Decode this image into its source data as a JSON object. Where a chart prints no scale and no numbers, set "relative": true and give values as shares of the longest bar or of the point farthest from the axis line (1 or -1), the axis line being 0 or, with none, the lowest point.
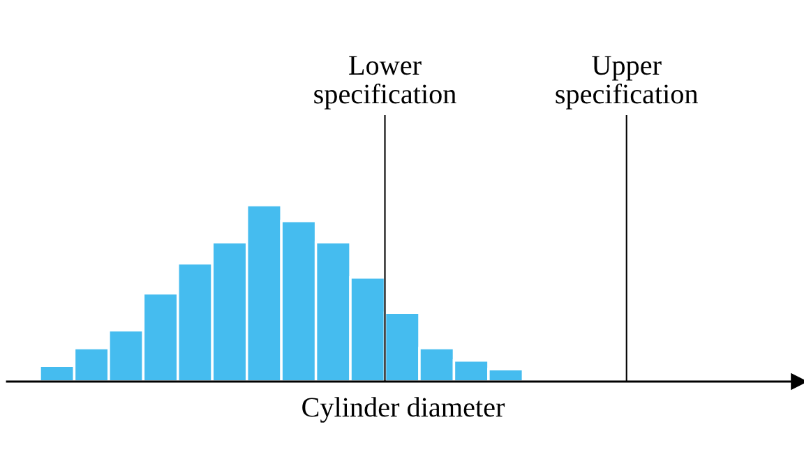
{
  "chart_data": {
    "type": "bar",
    "xlabel": "Cylinder diameter",
    "relative": true,
    "tick_labels": false,
    "categories": [
      null,
      null,
      null,
      null,
      null,
      null,
      null,
      null,
      null,
      null,
      null,
      null,
      null,
      null
    ],
    "values": [
      0.09,
      0.19,
      0.29,
      0.5,
      0.67,
      0.79,
      1,
      0.91,
      0.79,
      0.59,
      0.39,
      0.19,
      0.12,
      0.07
    ],
    "color": "#45bcef",
    "annotations": [
      "Lower\nspecification",
      "Upper\nspecification"
    ]
  }
}
